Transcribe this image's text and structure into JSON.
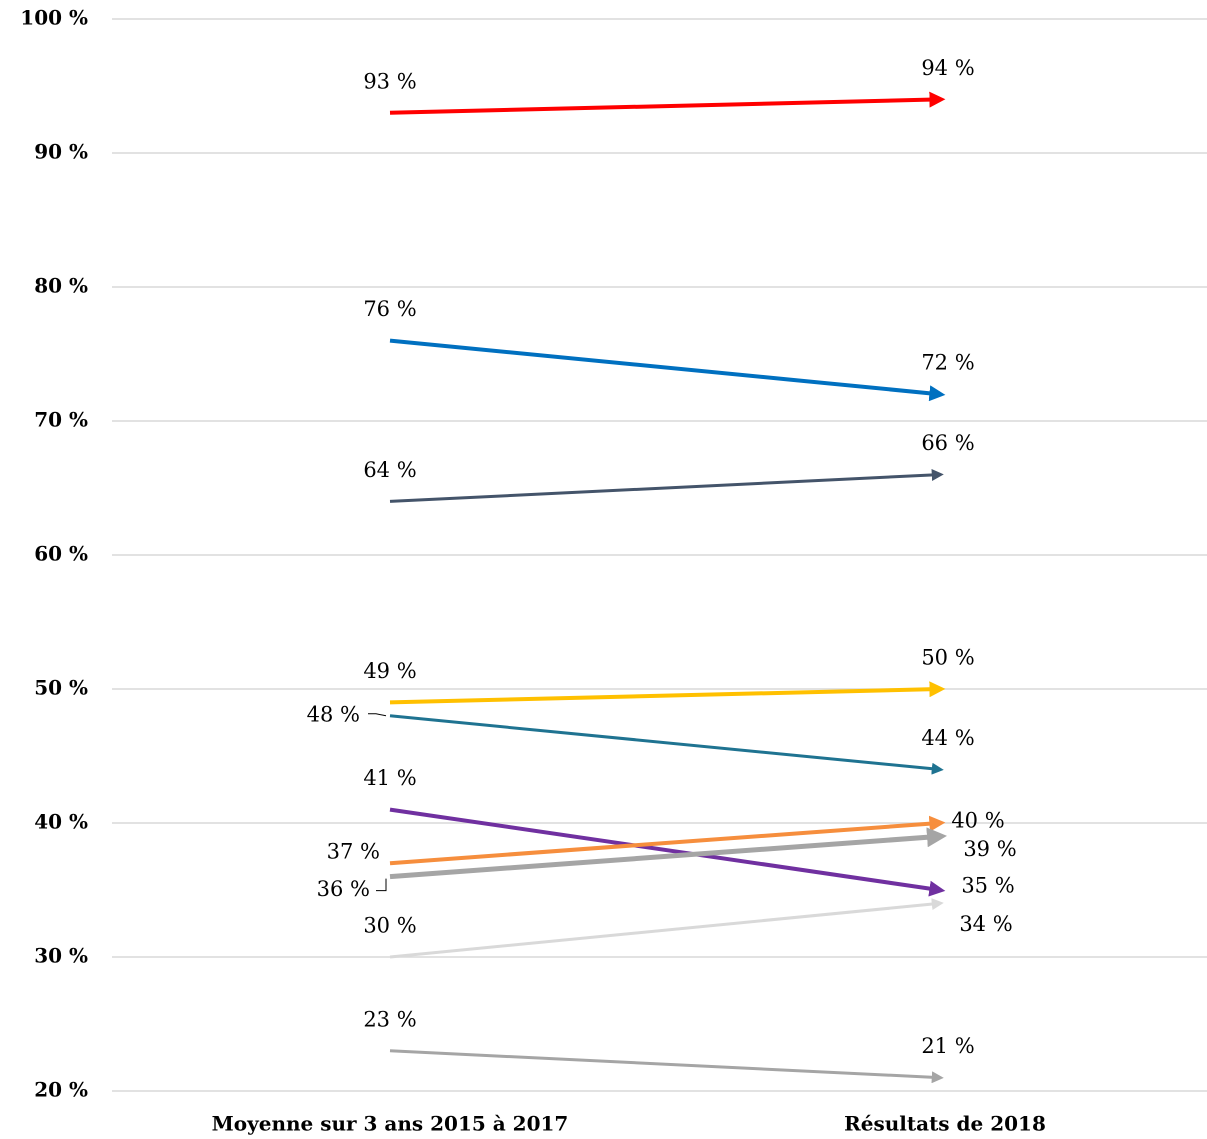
{
  "chart_data": {
    "type": "line",
    "categories": [
      "Moyenne sur 3 ans 2015 à 2017",
      "Résultats de 2018"
    ],
    "ylim": [
      20,
      100
    ],
    "yticks": [
      {
        "value": 20,
        "label": "20 %"
      },
      {
        "value": 30,
        "label": "30 %"
      },
      {
        "value": 40,
        "label": "40 %"
      },
      {
        "value": 50,
        "label": "50 %"
      },
      {
        "value": 60,
        "label": "60 %"
      },
      {
        "value": 70,
        "label": "70 %"
      },
      {
        "value": 80,
        "label": "80 %"
      },
      {
        "value": 90,
        "label": "90 %"
      },
      {
        "value": 100,
        "label": "100 %"
      }
    ],
    "grid": true,
    "series": [
      {
        "color": "#ff0000",
        "values": [
          93,
          94
        ],
        "value_labels": [
          "93 %",
          "94 %"
        ]
      },
      {
        "color": "#0070c0",
        "values": [
          76,
          72
        ],
        "value_labels": [
          "76 %",
          "72 %"
        ]
      },
      {
        "color": "#44546a",
        "values": [
          64,
          66
        ],
        "value_labels": [
          "64 %",
          "66 %"
        ]
      },
      {
        "color": "#ffc000",
        "values": [
          49,
          50
        ],
        "value_labels": [
          "49 %",
          "50 %"
        ]
      },
      {
        "color": "#1f7391",
        "values": [
          48,
          44
        ],
        "value_labels": [
          "48 %",
          "44 %"
        ]
      },
      {
        "color": "#7030a0",
        "values": [
          41,
          35
        ],
        "value_labels": [
          "41 %",
          "35 %"
        ]
      },
      {
        "color": "#f68e3d",
        "values": [
          37,
          40
        ],
        "value_labels": [
          "37 %",
          "40 %"
        ]
      },
      {
        "color": "#a5a5a5",
        "values": [
          36,
          39
        ],
        "value_labels": [
          "36 %",
          "39 %"
        ]
      },
      {
        "color": "#d9d9d9",
        "values": [
          30,
          34
        ],
        "value_labels": [
          "30 %",
          "34 %"
        ]
      },
      {
        "color": "#a5a5a5",
        "values": [
          23,
          21
        ],
        "value_labels": [
          "23 %",
          "21 %"
        ]
      }
    ]
  }
}
